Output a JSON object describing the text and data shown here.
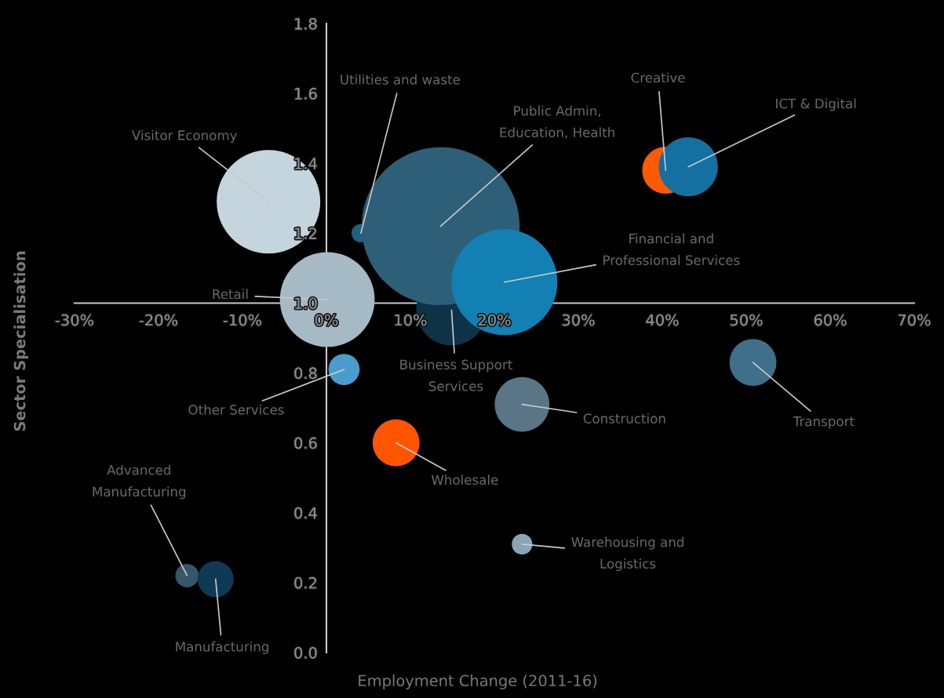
{
  "chart_data": {
    "type": "bubble",
    "xlabel": "Employment Change (2011-16)",
    "ylabel": "Sector Specialisation",
    "xlim": [
      -30,
      70
    ],
    "ylim": [
      0,
      1.8
    ],
    "xticks": [
      {
        "value": -30,
        "label": "-30%"
      },
      {
        "value": -20,
        "label": "-20%"
      },
      {
        "value": -10,
        "label": "-10%"
      },
      {
        "value": 0,
        "label": "0%"
      },
      {
        "value": 10,
        "label": "10%"
      },
      {
        "value": 20,
        "label": "20%"
      },
      {
        "value": 30,
        "label": "30%"
      },
      {
        "value": 40,
        "label": "40%"
      },
      {
        "value": 50,
        "label": "50%"
      },
      {
        "value": 60,
        "label": "60%"
      },
      {
        "value": 70,
        "label": "70%"
      }
    ],
    "yticks": [
      {
        "value": 0,
        "label": "0.0"
      },
      {
        "value": 0.2,
        "label": "0.2"
      },
      {
        "value": 0.4,
        "label": "0.4"
      },
      {
        "value": 0.6,
        "label": "0.6"
      },
      {
        "value": 0.8,
        "label": "0.8"
      },
      {
        "value": 1.0,
        "label": "1.0"
      },
      {
        "value": 1.2,
        "label": "1.2"
      },
      {
        "value": 1.4,
        "label": "1.4"
      },
      {
        "value": 1.6,
        "label": "1.6"
      },
      {
        "value": 1.8,
        "label": "1.8"
      }
    ],
    "series": [
      {
        "name": "Visitor Economy",
        "color": "#c5d5dd",
        "x": [
          -6.9
        ],
        "values": [
          1.29
        ],
        "sizes": [
          0.43
        ]
      },
      {
        "name": "Retail",
        "color": "#a6bac6",
        "x": [
          0.1
        ],
        "values": [
          1.01
        ],
        "sizes": [
          0.36
        ]
      },
      {
        "name": "Business Support\nServices",
        "color": "#0e3347",
        "x": [
          14.9
        ],
        "values": [
          0.98
        ],
        "sizes": [
          0.2
        ]
      },
      {
        "name": "Utilities and waste",
        "color": "#1f5f80",
        "x": [
          4.1
        ],
        "values": [
          1.2
        ],
        "sizes": [
          0.014
        ]
      },
      {
        "name": "Public Admin,\nEducation, Health",
        "color": "#2e5f78",
        "x": [
          13.6
        ],
        "values": [
          1.22
        ],
        "sizes": [
          1
        ]
      },
      {
        "name": "Financial and\nProfessional Services",
        "color": "#1380b4",
        "x": [
          21.2
        ],
        "values": [
          1.06
        ],
        "sizes": [
          0.45
        ]
      },
      {
        "name": "Creative",
        "color": "#ff5a00",
        "x": [
          40.4
        ],
        "values": [
          1.38
        ],
        "sizes": [
          0.088
        ]
      },
      {
        "name": "ICT & Digital",
        "color": "#1370a0",
        "x": [
          43.1
        ],
        "values": [
          1.39
        ],
        "sizes": [
          0.14
        ]
      },
      {
        "name": "Transport",
        "color": "#3f6f8a",
        "x": [
          50.8
        ],
        "values": [
          0.83
        ],
        "sizes": [
          0.088
        ]
      },
      {
        "name": "Other Services",
        "color": "#4a9ccc",
        "x": [
          2.1
        ],
        "values": [
          0.81
        ],
        "sizes": [
          0.039
        ]
      },
      {
        "name": "Construction",
        "color": "#5a7585",
        "x": [
          23.3
        ],
        "values": [
          0.71
        ],
        "sizes": [
          0.12
        ]
      },
      {
        "name": "Wholesale",
        "color": "#ff5500",
        "x": [
          8.3
        ],
        "values": [
          0.6
        ],
        "sizes": [
          0.088
        ]
      },
      {
        "name": "Warehousing and\nLogistics",
        "color": "#8aa5b5",
        "x": [
          23.3
        ],
        "values": [
          0.31
        ],
        "sizes": [
          0.017
        ]
      },
      {
        "name": "Advanced\nManufacturing",
        "color": "#36576a",
        "x": [
          -16.6
        ],
        "values": [
          0.22
        ],
        "sizes": [
          0.022
        ]
      },
      {
        "name": "Manufacturing",
        "color": "#0f3a55",
        "x": [
          -13.2
        ],
        "values": [
          0.21
        ],
        "sizes": [
          0.052
        ]
      }
    ]
  }
}
